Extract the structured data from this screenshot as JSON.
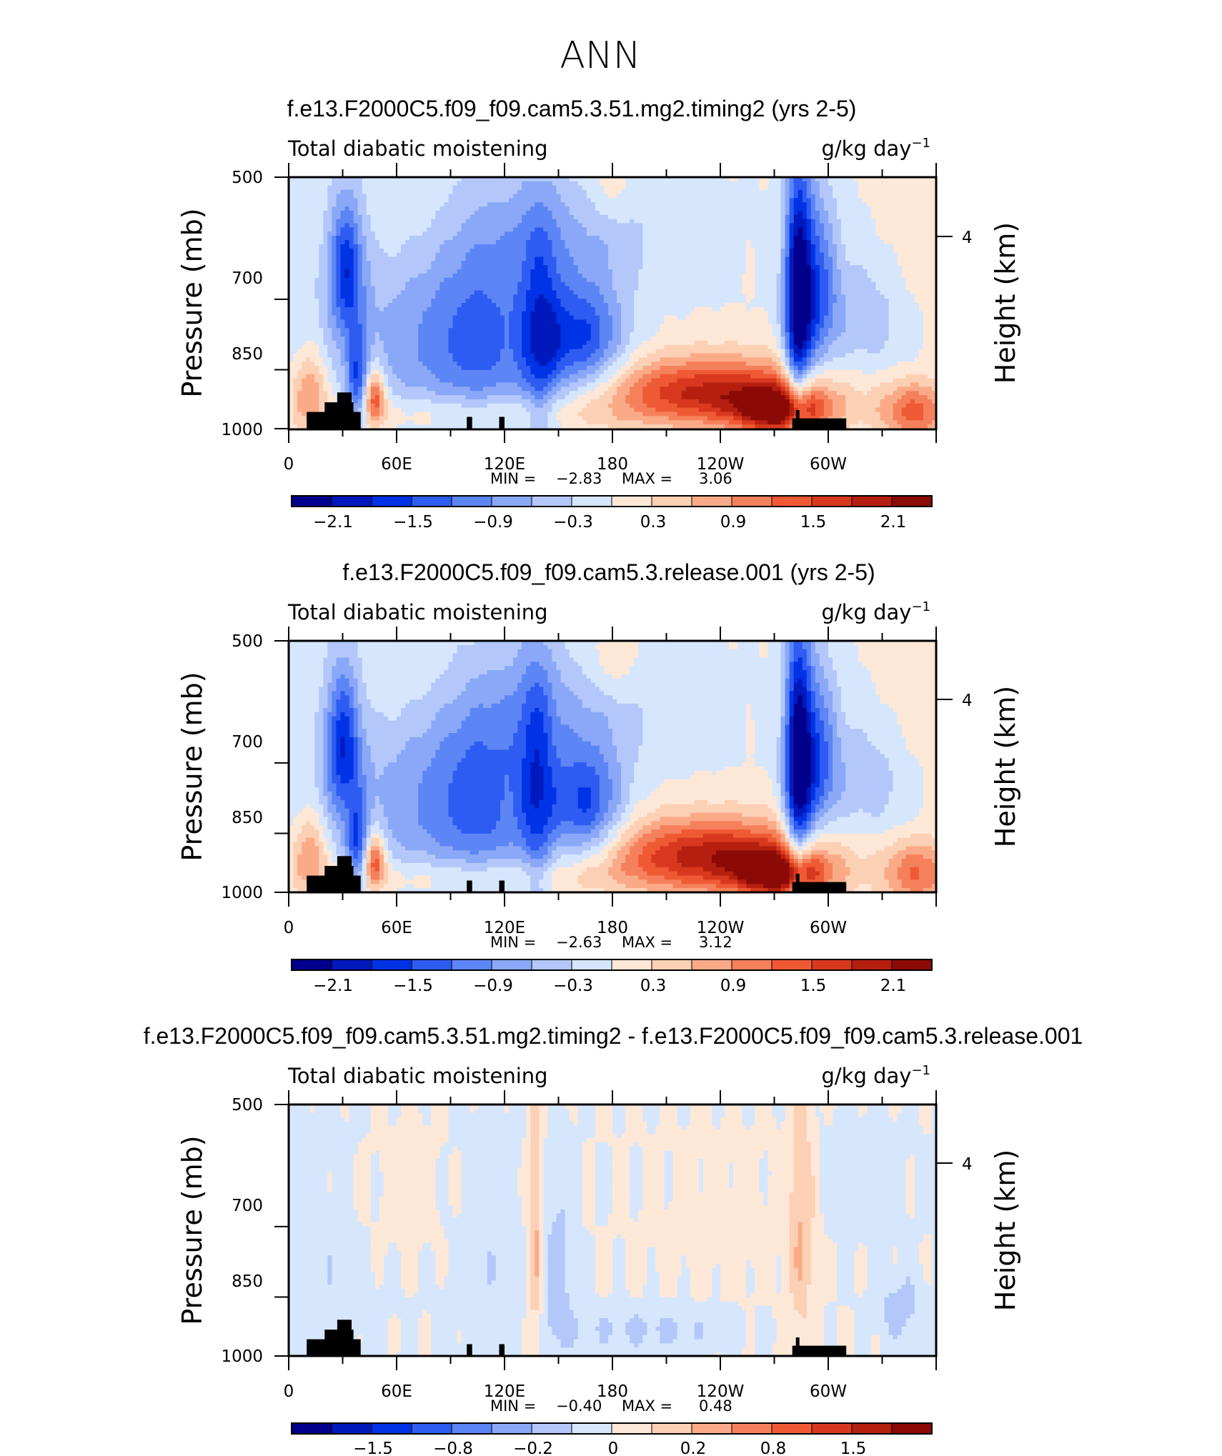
{
  "chart_data": {
    "type": "heatmap",
    "title": "ANN",
    "palette": [
      "#00008c",
      "#0019bd",
      "#0033e6",
      "#2e5cf2",
      "#5c85f5",
      "#8aa8f7",
      "#b3c7fa",
      "#d6e6fc",
      "#fde8d8",
      "#fcd0b4",
      "#fbaa88",
      "#f5815c",
      "#ef5a34",
      "#d8391e",
      "#b51f0f",
      "#8c0a05"
    ],
    "land_color": "#000000",
    "panels": [
      {
        "title": "f.e13.F2000C5.f09_f09.cam5.3.51.mg2.timing2 (yrs 2-5)",
        "subtitle_left": "Total diabatic moistening",
        "units": "g/kg day",
        "units_exp": "−1",
        "xticks": [
          "0",
          "60E",
          "120E",
          "180",
          "120W",
          "60W"
        ],
        "xlim": [
          0,
          360
        ],
        "yticks": [
          "500",
          "700",
          "850",
          "1000"
        ],
        "ylabel": "Pressure (mb)",
        "right_ticks": [
          "4"
        ],
        "right_label": "Height (km)",
        "min_label": "MIN =",
        "min_value": "−2.83",
        "max_label": "MAX =",
        "max_value": "3.06",
        "colorbar_labels": [
          "−2.1",
          "−1.5",
          "−0.9",
          "−0.3",
          "0.3",
          "0.9",
          "1.5",
          "2.1"
        ],
        "colorbar_label_edges": [
          1,
          3,
          5,
          7,
          9,
          11,
          13,
          15
        ],
        "levels": [
          -2.4,
          -2.1,
          -1.8,
          -1.5,
          -1.2,
          -0.9,
          -0.6,
          -0.3,
          0,
          0.3,
          0.6,
          0.9,
          1.2,
          1.5,
          1.8,
          2.1,
          2.4
        ],
        "features": [
          {
            "lon": 32,
            "p": 640,
            "dlon": 7,
            "dp": 90,
            "val": -1.5
          },
          {
            "lon": 38,
            "p": 880,
            "dlon": 4,
            "dp": 80,
            "val": -1.1
          },
          {
            "lon": 12,
            "p": 905,
            "dlon": 7,
            "dp": 70,
            "val": 1.0
          },
          {
            "lon": 48,
            "p": 915,
            "dlon": 4,
            "dp": 50,
            "val": 1.6
          },
          {
            "lon": 70,
            "p": 790,
            "dlon": 40,
            "dp": 150,
            "val": -0.7
          },
          {
            "lon": 110,
            "p": 780,
            "dlon": 22,
            "dp": 160,
            "val": -0.9
          },
          {
            "lon": 140,
            "p": 780,
            "dlon": 8,
            "dp": 170,
            "val": -1.0
          },
          {
            "lon": 163,
            "p": 780,
            "dlon": 17,
            "dp": 90,
            "val": -1.5
          },
          {
            "lon": 150,
            "p": 580,
            "dlon": 45,
            "dp": 70,
            "val": -0.5
          },
          {
            "lon": 100,
            "p": 960,
            "dlon": 55,
            "dp": 38,
            "val": 0.55
          },
          {
            "lon": 235,
            "p": 905,
            "dlon": 42,
            "dp": 60,
            "val": 1.9
          },
          {
            "lon": 275,
            "p": 955,
            "dlon": 18,
            "dp": 45,
            "val": 2.0
          },
          {
            "lon": 283,
            "p": 720,
            "dlon": 5,
            "dp": 200,
            "val": -1.9
          },
          {
            "lon": 292,
            "p": 680,
            "dlon": 9,
            "dp": 120,
            "val": -1.4
          },
          {
            "lon": 320,
            "p": 740,
            "dlon": 18,
            "dp": 90,
            "val": -0.5
          },
          {
            "lon": 348,
            "p": 955,
            "dlon": 14,
            "dp": 55,
            "val": 1.3
          },
          {
            "lon": 180,
            "p": 520,
            "dlon": 9,
            "dp": 30,
            "val": 0.35
          },
          {
            "lon": 350,
            "p": 560,
            "dlon": 15,
            "dp": 120,
            "val": 0.25
          },
          {
            "lon": 75,
            "p": 560,
            "dlon": 28,
            "dp": 70,
            "val": 0.2
          }
        ]
      },
      {
        "title": "f.e13.F2000C5.f09_f09.cam5.3.release.001 (yrs 2-5)",
        "subtitle_left": "Total diabatic moistening",
        "units": "g/kg day",
        "units_exp": "−1",
        "xticks": [
          "0",
          "60E",
          "120E",
          "180",
          "120W",
          "60W"
        ],
        "xlim": [
          0,
          360
        ],
        "yticks": [
          "500",
          "700",
          "850",
          "1000"
        ],
        "ylabel": "Pressure (mb)",
        "right_ticks": [
          "4"
        ],
        "right_label": "Height (km)",
        "min_label": "MIN =",
        "min_value": "−2.63",
        "max_label": "MAX =",
        "max_value": "3.12",
        "colorbar_labels": [
          "−2.1",
          "−1.5",
          "−0.9",
          "−0.3",
          "0.3",
          "0.9",
          "1.5",
          "2.1"
        ],
        "colorbar_label_edges": [
          1,
          3,
          5,
          7,
          9,
          11,
          13,
          15
        ],
        "levels": [
          -2.4,
          -2.1,
          -1.8,
          -1.5,
          -1.2,
          -0.9,
          -0.6,
          -0.3,
          0,
          0.3,
          0.6,
          0.9,
          1.2,
          1.5,
          1.8,
          2.1,
          2.4
        ],
        "features": [
          {
            "lon": 30,
            "p": 660,
            "dlon": 7,
            "dp": 100,
            "val": -1.5
          },
          {
            "lon": 38,
            "p": 880,
            "dlon": 4,
            "dp": 80,
            "val": -1.1
          },
          {
            "lon": 12,
            "p": 905,
            "dlon": 7,
            "dp": 70,
            "val": 1.0
          },
          {
            "lon": 48,
            "p": 915,
            "dlon": 4,
            "dp": 50,
            "val": 1.6
          },
          {
            "lon": 70,
            "p": 790,
            "dlon": 40,
            "dp": 150,
            "val": -0.7
          },
          {
            "lon": 110,
            "p": 780,
            "dlon": 22,
            "dp": 160,
            "val": -0.9
          },
          {
            "lon": 138,
            "p": 760,
            "dlon": 7,
            "dp": 180,
            "val": -1.0
          },
          {
            "lon": 165,
            "p": 790,
            "dlon": 15,
            "dp": 90,
            "val": -1.5
          },
          {
            "lon": 150,
            "p": 600,
            "dlon": 45,
            "dp": 80,
            "val": -0.5
          },
          {
            "lon": 100,
            "p": 960,
            "dlon": 55,
            "dp": 38,
            "val": 0.55
          },
          {
            "lon": 235,
            "p": 905,
            "dlon": 42,
            "dp": 65,
            "val": 2.0
          },
          {
            "lon": 275,
            "p": 955,
            "dlon": 18,
            "dp": 45,
            "val": 2.0
          },
          {
            "lon": 283,
            "p": 720,
            "dlon": 5,
            "dp": 200,
            "val": -1.9
          },
          {
            "lon": 292,
            "p": 690,
            "dlon": 9,
            "dp": 120,
            "val": -1.4
          },
          {
            "lon": 322,
            "p": 740,
            "dlon": 18,
            "dp": 90,
            "val": -0.5
          },
          {
            "lon": 350,
            "p": 950,
            "dlon": 14,
            "dp": 60,
            "val": 1.2
          },
          {
            "lon": 180,
            "p": 535,
            "dlon": 11,
            "dp": 40,
            "val": 0.4
          },
          {
            "lon": 350,
            "p": 560,
            "dlon": 15,
            "dp": 120,
            "val": 0.25
          },
          {
            "lon": 75,
            "p": 560,
            "dlon": 28,
            "dp": 70,
            "val": 0.2
          }
        ]
      },
      {
        "title": "f.e13.F2000C5.f09_f09.cam5.3.51.mg2.timing2 - f.e13.F2000C5.f09_f09.cam5.3.release.001",
        "subtitle_left": "Total diabatic moistening",
        "units": "g/kg day",
        "units_exp": "−1",
        "xticks": [
          "0",
          "60E",
          "120E",
          "180",
          "120W",
          "60W"
        ],
        "xlim": [
          0,
          360
        ],
        "yticks": [
          "500",
          "700",
          "850",
          "1000"
        ],
        "ylabel": "Pressure (mb)",
        "right_ticks": [
          "4"
        ],
        "right_label": "Height (km)",
        "min_label": "MIN =",
        "min_value": "−0.40",
        "max_label": "MAX =",
        "max_value": "0.48",
        "colorbar_labels": [
          "−1.5",
          "−0.8",
          "−0.2",
          "0",
          "0.2",
          "0.8",
          "1.5"
        ],
        "colorbar_label_edges": [
          2,
          4,
          6,
          8,
          10,
          12,
          14
        ],
        "levels": [
          -2,
          -1.8,
          -1.5,
          -1.2,
          -0.8,
          -0.5,
          -0.2,
          -0.1,
          0,
          0.1,
          0.2,
          0.5,
          0.8,
          1.2,
          1.5,
          1.8,
          2
        ],
        "features": [
          {
            "lon": 20,
            "p": 760,
            "dlon": 25,
            "dp": 200,
            "val": -0.08
          },
          {
            "lon": 110,
            "p": 760,
            "dlon": 18,
            "dp": 200,
            "val": -0.08
          },
          {
            "lon": 150,
            "p": 800,
            "dlon": 6,
            "dp": 160,
            "val": -0.15
          },
          {
            "lon": 137,
            "p": 700,
            "dlon": 3,
            "dp": 200,
            "val": 0.25
          },
          {
            "lon": 285,
            "p": 700,
            "dlon": 5,
            "dp": 190,
            "val": 0.2
          },
          {
            "lon": 340,
            "p": 880,
            "dlon": 10,
            "dp": 60,
            "val": -0.15
          },
          {
            "lon": 200,
            "p": 930,
            "dlon": 35,
            "dp": 40,
            "val": -0.12
          },
          {
            "lon": 60,
            "p": 650,
            "dlon": 30,
            "dp": 100,
            "val": 0.06
          },
          {
            "lon": 240,
            "p": 700,
            "dlon": 30,
            "dp": 100,
            "val": 0.05
          },
          {
            "lon": 320,
            "p": 620,
            "dlon": 20,
            "dp": 90,
            "val": -0.05
          }
        ]
      }
    ]
  }
}
